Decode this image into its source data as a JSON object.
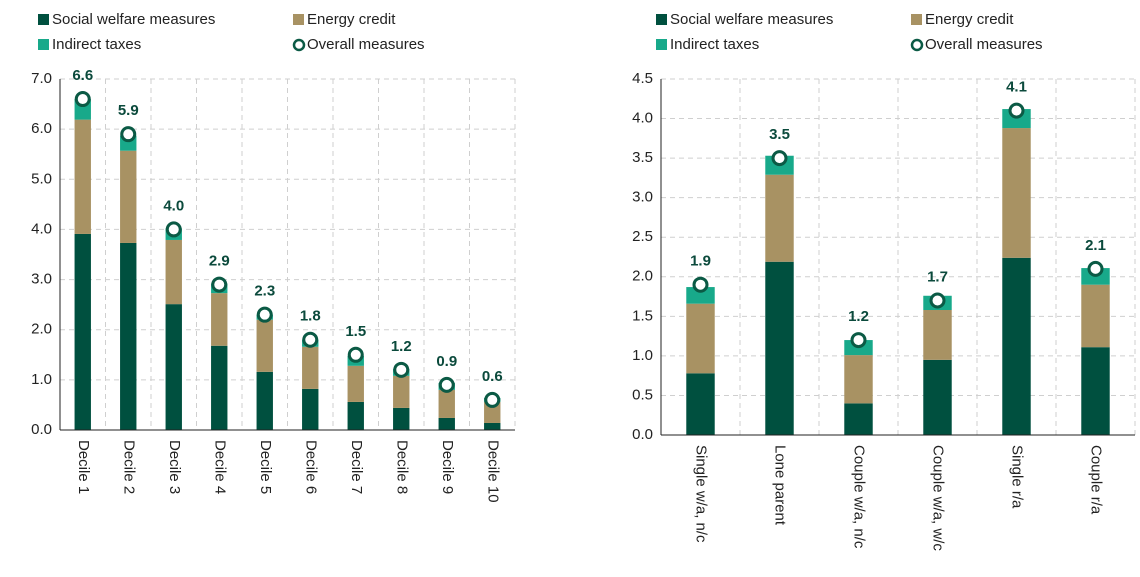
{
  "chart_data": [
    {
      "type": "stacked_bar",
      "categories": [
        "Decile 1",
        "Decile 2",
        "Decile 3",
        "Decile 4",
        "Decile 5",
        "Decile 6",
        "Decile 7",
        "Decile 8",
        "Decile 9",
        "Decile 10"
      ],
      "series": [
        {
          "name": "Social welfare measures",
          "color": "#00503f",
          "values": [
            3.91,
            3.73,
            2.51,
            1.68,
            1.16,
            0.82,
            0.56,
            0.44,
            0.24,
            0.14
          ]
        },
        {
          "name": "Energy credit",
          "color": "#a89263",
          "values": [
            2.28,
            1.84,
            1.28,
            1.05,
            1.04,
            0.84,
            0.72,
            0.64,
            0.56,
            0.42
          ]
        },
        {
          "name": "Indirect taxes",
          "color": "#18a98a",
          "values": [
            0.41,
            0.3,
            0.23,
            0.19,
            0.1,
            0.14,
            0.2,
            0.14,
            0.14,
            0.08
          ]
        }
      ],
      "overall": {
        "name": "Overall measures",
        "color": "#0b5a45",
        "values": [
          6.6,
          5.9,
          4.0,
          2.9,
          2.3,
          1.8,
          1.5,
          1.2,
          0.9,
          0.6
        ],
        "value_labels": [
          "6.6",
          "5.9",
          "4.0",
          "2.9",
          "2.3",
          "1.8",
          "1.5",
          "1.2",
          "0.9",
          "0.6"
        ]
      },
      "ylim": [
        0,
        7
      ],
      "yticks": [
        {
          "value": 0,
          "label": "0.0"
        },
        {
          "value": 1,
          "label": "1.0"
        },
        {
          "value": 2,
          "label": "2.0"
        },
        {
          "value": 3,
          "label": "3.0"
        },
        {
          "value": 4,
          "label": "4.0"
        },
        {
          "value": 5,
          "label": "5.0"
        },
        {
          "value": 6,
          "label": "6.0"
        },
        {
          "value": 7,
          "label": "7.0"
        }
      ],
      "grid": true
    },
    {
      "type": "stacked_bar",
      "categories": [
        "Single w/a, n/c",
        "Lone parent",
        "Couple w/a, n/c",
        "Couple w/a, w/c",
        "Single r/a",
        "Couple r/a"
      ],
      "series": [
        {
          "name": "Social welfare measures",
          "color": "#00503f",
          "values": [
            0.78,
            2.19,
            0.4,
            0.95,
            2.24,
            1.11
          ]
        },
        {
          "name": "Energy credit",
          "color": "#a89263",
          "values": [
            0.88,
            1.1,
            0.61,
            0.63,
            1.64,
            0.79
          ]
        },
        {
          "name": "Indirect taxes",
          "color": "#18a98a",
          "values": [
            0.21,
            0.24,
            0.19,
            0.18,
            0.24,
            0.21
          ]
        }
      ],
      "overall": {
        "name": "Overall measures",
        "color": "#0b5a45",
        "values": [
          1.9,
          3.5,
          1.2,
          1.7,
          4.1,
          2.1
        ],
        "value_labels": [
          "1.9",
          "3.5",
          "1.2",
          "1.7",
          "4.1",
          "2.1"
        ]
      },
      "ylim": [
        0,
        4.5
      ],
      "yticks": [
        {
          "value": 0,
          "label": "0.0"
        },
        {
          "value": 0.5,
          "label": "0.5"
        },
        {
          "value": 1,
          "label": "1.0"
        },
        {
          "value": 1.5,
          "label": "1.5"
        },
        {
          "value": 2,
          "label": "2.0"
        },
        {
          "value": 2.5,
          "label": "2.5"
        },
        {
          "value": 3,
          "label": "3.0"
        },
        {
          "value": 3.5,
          "label": "3.5"
        },
        {
          "value": 4,
          "label": "4.0"
        },
        {
          "value": 4.5,
          "label": "4.5"
        }
      ],
      "grid": true
    }
  ]
}
